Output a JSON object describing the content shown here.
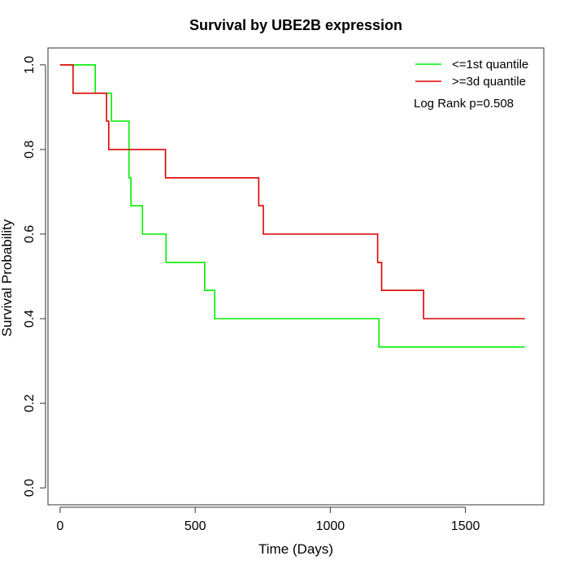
{
  "chart_data": {
    "type": "line",
    "title": "Survival by UBE2B expression",
    "xlabel": "Time (Days)",
    "ylabel": "Survival Probability",
    "xlim": [
      -45,
      1790
    ],
    "ylim": [
      -0.04,
      1.04
    ],
    "xticks": [
      0,
      500,
      1000,
      1500
    ],
    "yticks": [
      0.0,
      0.2,
      0.4,
      0.6,
      0.8,
      1.0
    ],
    "xtick_labels": [
      "0",
      "500",
      "1000",
      "1500"
    ],
    "ytick_labels": [
      "0.0",
      "0.2",
      "0.4",
      "0.6",
      "0.8",
      "1.0"
    ],
    "step": true,
    "grid": false,
    "legend_position": "top-right",
    "annotation": "Log Rank p=0.508",
    "series": [
      {
        "name": "<=1st quantile",
        "color": "#00ee00",
        "points": [
          [
            0,
            1.0
          ],
          [
            130,
            1.0
          ],
          [
            130,
            0.933
          ],
          [
            190,
            0.933
          ],
          [
            190,
            0.867
          ],
          [
            255,
            0.867
          ],
          [
            255,
            0.733
          ],
          [
            262,
            0.733
          ],
          [
            262,
            0.667
          ],
          [
            305,
            0.667
          ],
          [
            305,
            0.6
          ],
          [
            392,
            0.6
          ],
          [
            392,
            0.533
          ],
          [
            535,
            0.533
          ],
          [
            535,
            0.467
          ],
          [
            572,
            0.467
          ],
          [
            572,
            0.4
          ],
          [
            1180,
            0.4
          ],
          [
            1180,
            0.333
          ],
          [
            1720,
            0.333
          ]
        ]
      },
      {
        "name": ">=3d quantile",
        "color": "#dd0000",
        "points": [
          [
            0,
            1.0
          ],
          [
            48,
            1.0
          ],
          [
            48,
            0.933
          ],
          [
            172,
            0.933
          ],
          [
            172,
            0.867
          ],
          [
            180,
            0.867
          ],
          [
            180,
            0.8
          ],
          [
            390,
            0.8
          ],
          [
            390,
            0.733
          ],
          [
            735,
            0.733
          ],
          [
            735,
            0.667
          ],
          [
            752,
            0.667
          ],
          [
            752,
            0.6
          ],
          [
            1175,
            0.6
          ],
          [
            1175,
            0.533
          ],
          [
            1190,
            0.533
          ],
          [
            1190,
            0.467
          ],
          [
            1345,
            0.467
          ],
          [
            1345,
            0.4
          ],
          [
            1720,
            0.4
          ]
        ]
      }
    ]
  }
}
